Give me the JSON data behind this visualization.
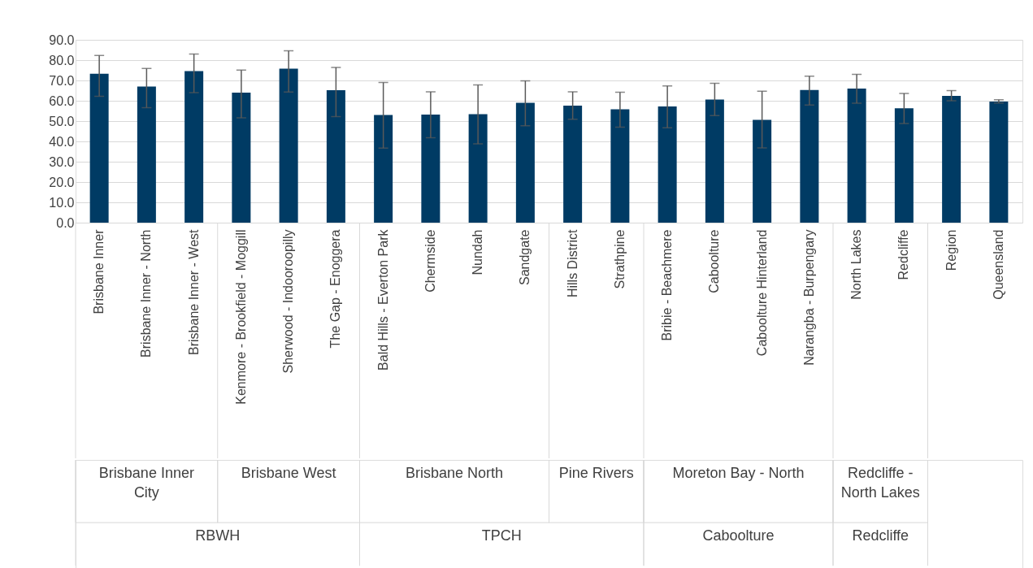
{
  "chart_data": {
    "type": "bar",
    "categories": [
      "Brisbane Inner",
      "Brisbane Inner - North",
      "Brisbane Inner - West",
      "Kenmore - Brookfield - Moggill",
      "Sherwood - Indooroopilly",
      "The Gap - Enoggera",
      "Bald Hills - Everton Park",
      "Chermside",
      "Nundah",
      "Sandgate",
      "Hills District",
      "Strathpine",
      "Bribie - Beachmere",
      "Caboolture",
      "Caboolture Hinterland",
      "Narangba - Burpengary",
      "North Lakes",
      "Redcliffe",
      "Region",
      "Queensland"
    ],
    "values": [
      73.3,
      67.0,
      74.6,
      64.0,
      75.8,
      65.2,
      53.0,
      53.2,
      53.4,
      59.0,
      57.6,
      55.8,
      57.2,
      60.6,
      50.6,
      65.3,
      66.0,
      56.3,
      62.4,
      59.6
    ],
    "errors": [
      [
        62.2,
        82.3
      ],
      [
        56.6,
        75.9
      ],
      [
        64.0,
        83.0
      ],
      [
        51.6,
        75.1
      ],
      [
        64.3,
        84.6
      ],
      [
        52.2,
        76.4
      ],
      [
        36.7,
        69.0
      ],
      [
        41.8,
        64.4
      ],
      [
        38.8,
        67.8
      ],
      [
        47.7,
        69.8
      ],
      [
        50.9,
        64.4
      ],
      [
        47.0,
        64.2
      ],
      [
        46.7,
        67.3
      ],
      [
        52.7,
        68.6
      ],
      [
        36.8,
        64.7
      ],
      [
        57.9,
        72.1
      ],
      [
        58.8,
        73.0
      ],
      [
        48.8,
        63.6
      ],
      [
        60.0,
        65.0
      ],
      [
        58.9,
        60.5
      ]
    ],
    "color": "#003b64",
    "ylim": [
      0,
      90
    ],
    "yticks": [
      {
        "value": 0,
        "label": "0.0"
      },
      {
        "value": 10,
        "label": "10.0"
      },
      {
        "value": 20,
        "label": "20.0"
      },
      {
        "value": 30,
        "label": "30.0"
      },
      {
        "value": 40,
        "label": "40.0"
      },
      {
        "value": 50,
        "label": "50.0"
      },
      {
        "value": 60,
        "label": "60.0"
      },
      {
        "value": 70,
        "label": "70.0"
      },
      {
        "value": 80,
        "label": "80.0"
      },
      {
        "value": 90,
        "label": "90.0"
      }
    ],
    "grid": "y",
    "annotations": [
      "Brisbane Inner City",
      "Brisbane West",
      "Brisbane North",
      "Pine Rivers",
      "Moreton Bay - North",
      "Redcliffe - North Lakes",
      "RBWH",
      "TPCH",
      "Caboolture",
      "Redcliffe"
    ]
  }
}
